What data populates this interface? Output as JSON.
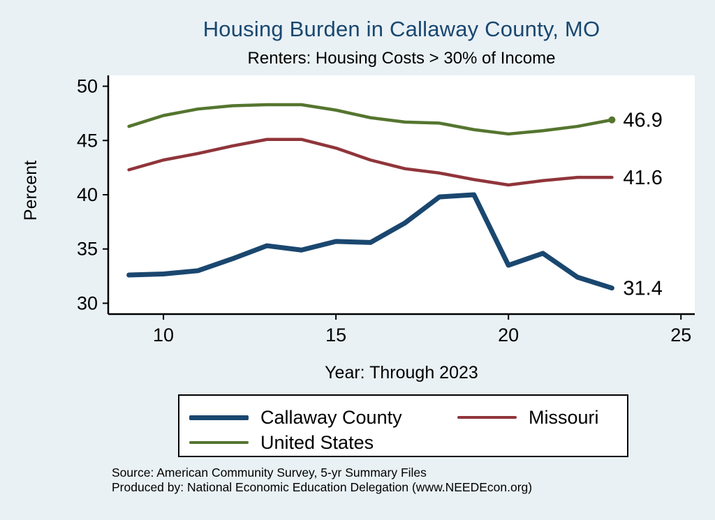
{
  "page": {
    "background_color": "#e9f1f5"
  },
  "chart_data": {
    "type": "line",
    "title": "Housing Burden in Callaway County, MO",
    "subtitle": "Renters: Housing Costs > 30% of Income",
    "xlabel": "Year: Through 2023",
    "ylabel": "Percent",
    "title_color": "#1a476f",
    "plot_background": "#ffffff",
    "axis_color": "#000000",
    "grid": false,
    "legend_position": "bottom",
    "x": [
      9,
      10,
      11,
      12,
      13,
      14,
      15,
      16,
      17,
      18,
      19,
      20,
      21,
      22,
      23
    ],
    "xlim": [
      8.4,
      25.4
    ],
    "ylim": [
      29,
      51
    ],
    "xticks": [
      10,
      15,
      20,
      25
    ],
    "yticks": [
      30,
      35,
      40,
      45,
      50
    ],
    "series": [
      {
        "name": "Callaway County",
        "color": "#1a476f",
        "line_width": 7,
        "end_label": "31.4",
        "end_marker": false,
        "values": [
          32.6,
          32.7,
          33.0,
          34.1,
          35.3,
          34.9,
          35.7,
          35.6,
          37.4,
          39.8,
          40.0,
          33.5,
          34.6,
          32.4,
          31.4
        ]
      },
      {
        "name": "Missouri",
        "color": "#90353b",
        "line_width": 4.5,
        "end_label": "41.6",
        "end_marker": false,
        "values": [
          42.3,
          43.2,
          43.8,
          44.5,
          45.1,
          45.1,
          44.3,
          43.2,
          42.4,
          42.0,
          41.4,
          40.9,
          41.3,
          41.6,
          41.6
        ]
      },
      {
        "name": "United States",
        "color": "#55752f",
        "line_width": 4.5,
        "end_label": "46.9",
        "end_marker": true,
        "values": [
          46.3,
          47.3,
          47.9,
          48.2,
          48.3,
          48.3,
          47.8,
          47.1,
          46.7,
          46.6,
          46.0,
          45.6,
          45.9,
          46.3,
          46.9
        ]
      }
    ]
  },
  "notes": {
    "source": "Source: American Community Survey, 5-yr Summary Files",
    "produced_by": "Produced by: National Economic Education Delegation (www.NEEDEcon.org)"
  }
}
